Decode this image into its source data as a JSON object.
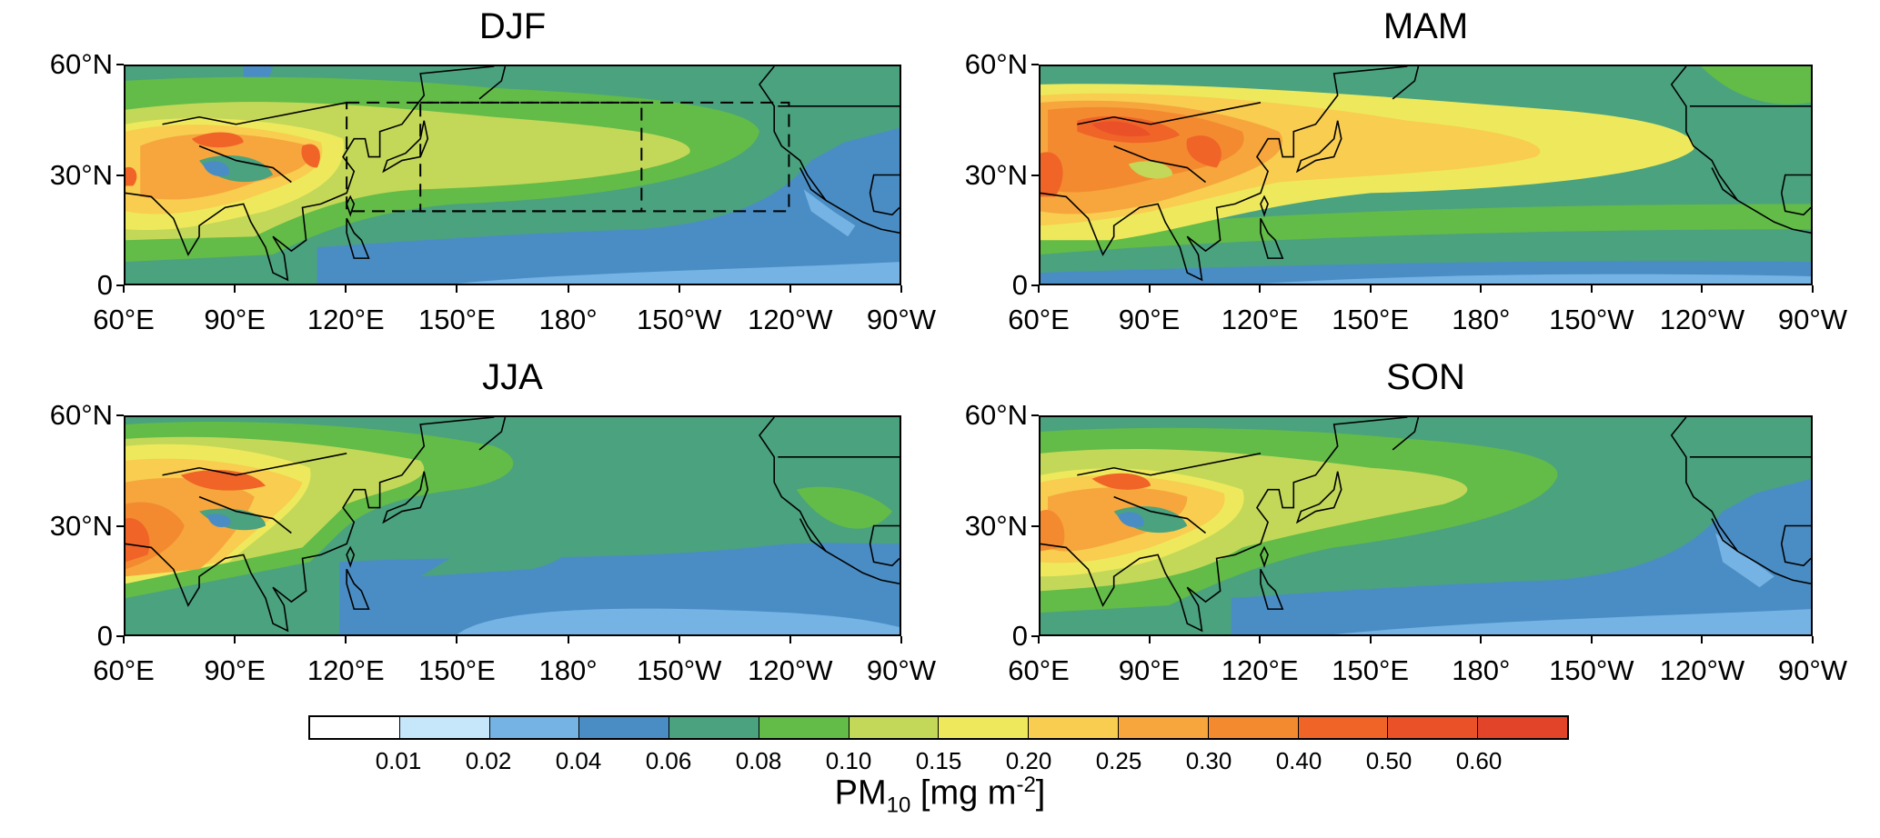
{
  "panels": [
    {
      "title": "DJF"
    },
    {
      "title": "MAM"
    },
    {
      "title": "JJA"
    },
    {
      "title": "SON"
    }
  ],
  "lat_labels": [
    "60°N",
    "30°N",
    "0"
  ],
  "lon_labels": [
    "60°E",
    "90°E",
    "120°E",
    "150°E",
    "180°",
    "150°W",
    "120°W",
    "90°W"
  ],
  "colorbar": {
    "colors": [
      "#ffffff",
      "#c6e6fa",
      "#74b3e3",
      "#4a8dc4",
      "#4aa27f",
      "#63bb48",
      "#c3d858",
      "#eee95c",
      "#f8cd50",
      "#f6a63c",
      "#f38a30",
      "#f06428",
      "#ea5128",
      "#e2442a"
    ],
    "labels": [
      "0.01",
      "0.02",
      "0.04",
      "0.06",
      "0.08",
      "0.10",
      "0.15",
      "0.20",
      "0.25",
      "0.30",
      "0.40",
      "0.50",
      "0.60"
    ],
    "title_main": "PM",
    "title_sub": "10",
    "title_unit": " [mg m",
    "title_sup": "-2",
    "title_end": "]"
  }
}
